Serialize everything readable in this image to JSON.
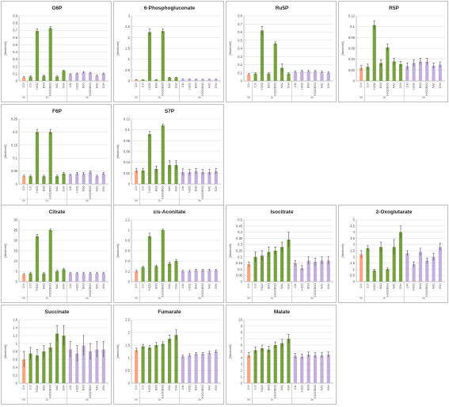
{
  "colors": {
    "control": "#f4a582",
    "group_1h": "#77a040",
    "group_4h": "#c2b0da",
    "error_bar": "#333333",
    "grid": "#d9d9d9"
  },
  "x_groups": [
    "0h",
    "1h",
    "4h"
  ],
  "chart_data": [
    {
      "type": "bar",
      "title": "G6P",
      "ylabel": "[fmol/cell]",
      "ylim": [
        0,
        0.9
      ],
      "yticks": [
        "0",
        "0.1",
        "0.2",
        "0.3",
        "0.4",
        "0.5",
        "0.6",
        "0.7",
        "0.8",
        "0.9"
      ],
      "categories": [
        "C0h",
        "C1h",
        "H2O2",
        "BSO",
        "H2O2/BSO",
        "NAC",
        "GSH",
        "C4h",
        "H2O2",
        "BSO",
        "H2O2/BSO",
        "NAC",
        "GSH"
      ],
      "values": [
        0.05,
        0.06,
        0.69,
        0.07,
        0.73,
        0.06,
        0.14,
        0.09,
        0.1,
        0.12,
        0.11,
        0.07,
        0.1
      ],
      "errors": [
        0.01,
        0.01,
        0.03,
        0.01,
        0.02,
        0.01,
        0.01,
        0.01,
        0.01,
        0.01,
        0.01,
        0.01,
        0.01
      ]
    },
    {
      "type": "bar",
      "title": "6-Phosphogluconate",
      "ylabel": "[fmol/cell]",
      "ylim": [
        0,
        3
      ],
      "yticks": [
        "0",
        "0.5",
        "1",
        "1.5",
        "2",
        "2.5",
        "3"
      ],
      "categories": [
        "C0h",
        "C1h",
        "H2O2",
        "BSO",
        "H2O2/BSO",
        "NAC",
        "GSH",
        "C4h",
        "H2O2",
        "BSO",
        "H2O2/BSO",
        "NAC",
        "GSH"
      ],
      "values": [
        0.05,
        0.05,
        2.25,
        0.06,
        2.3,
        0.15,
        0.15,
        0.08,
        0.08,
        0.07,
        0.07,
        0.07,
        0.07
      ],
      "errors": [
        0.01,
        0.01,
        0.15,
        0.01,
        0.1,
        0.02,
        0.02,
        0.01,
        0.01,
        0.01,
        0.01,
        0.01,
        0.01
      ]
    },
    {
      "type": "bar",
      "title": "Ru5P",
      "ylabel": "[fmol/cell]",
      "ylim": [
        0,
        0.8
      ],
      "yticks": [
        "0",
        "0.1",
        "0.2",
        "0.3",
        "0.4",
        "0.5",
        "0.6",
        "0.7",
        "0.8"
      ],
      "categories": [
        "C0h",
        "C1h",
        "H2O2",
        "BSO",
        "H2O2/BSO",
        "NAC",
        "GSH",
        "C4h",
        "H2O2",
        "BSO",
        "H2O2/BSO",
        "NAC",
        "GSH"
      ],
      "values": [
        0.08,
        0.09,
        0.62,
        0.09,
        0.46,
        0.16,
        0.09,
        0.11,
        0.12,
        0.12,
        0.12,
        0.11,
        0.1
      ],
      "errors": [
        0.01,
        0.01,
        0.05,
        0.01,
        0.02,
        0.05,
        0.01,
        0.01,
        0.01,
        0.01,
        0.01,
        0.01,
        0.01
      ]
    },
    {
      "type": "bar",
      "title": "R5P",
      "ylabel": "[fmol/cell]",
      "ylim": [
        0,
        0.12
      ],
      "yticks": [
        "0",
        "0.02",
        "0.04",
        "0.06",
        "0.08",
        "0.1",
        "0.12"
      ],
      "categories": [
        "C0h",
        "C1h",
        "H2O2",
        "BSO",
        "H2O2/BSO",
        "NAC",
        "GSH",
        "C4h",
        "H2O2",
        "BSO",
        "H2O2/BSO",
        "NAC",
        "GSH"
      ],
      "values": [
        0.024,
        0.026,
        0.103,
        0.033,
        0.062,
        0.036,
        0.031,
        0.027,
        0.033,
        0.036,
        0.036,
        0.028,
        0.03
      ],
      "errors": [
        0.005,
        0.005,
        0.008,
        0.006,
        0.006,
        0.006,
        0.005,
        0.006,
        0.006,
        0.006,
        0.006,
        0.005,
        0.005
      ]
    },
    {
      "type": "bar",
      "title": "F6P",
      "ylabel": "[fmol/cell]",
      "ylim": [
        0,
        0.25
      ],
      "yticks": [
        "0",
        "0.05",
        "0.1",
        "0.15",
        "0.2",
        "0.25"
      ],
      "categories": [
        "C0h",
        "C1h",
        "H2O2",
        "BSO",
        "H2O2/BSO",
        "NAC",
        "GSH",
        "C4h",
        "H2O2",
        "BSO",
        "H2O2/BSO",
        "NAC",
        "GSH"
      ],
      "values": [
        0.03,
        0.03,
        0.2,
        0.03,
        0.2,
        0.03,
        0.04,
        0.035,
        0.04,
        0.04,
        0.045,
        0.03,
        0.04
      ],
      "errors": [
        0.004,
        0.004,
        0.01,
        0.004,
        0.01,
        0.004,
        0.005,
        0.004,
        0.005,
        0.005,
        0.005,
        0.004,
        0.005
      ]
    },
    {
      "type": "bar",
      "title": "S7P",
      "ylabel": "[fmol/cell]",
      "ylim": [
        0,
        0.12
      ],
      "yticks": [
        "0",
        "0.02",
        "0.04",
        "0.06",
        "0.08",
        "0.1",
        "0.12"
      ],
      "categories": [
        "C0h",
        "C1h",
        "H2O2",
        "BSO",
        "H2O2/BSO",
        "NAC",
        "GSH",
        "C4h",
        "H2O2",
        "BSO",
        "H2O2/BSO",
        "NAC",
        "GSH"
      ],
      "values": [
        0.025,
        0.025,
        0.092,
        0.028,
        0.108,
        0.035,
        0.035,
        0.022,
        0.022,
        0.024,
        0.022,
        0.022,
        0.024
      ],
      "errors": [
        0.004,
        0.004,
        0.005,
        0.005,
        0.003,
        0.008,
        0.008,
        0.006,
        0.005,
        0.005,
        0.005,
        0.005,
        0.005
      ]
    },
    {
      "type": "bar",
      "title": "Citrate",
      "ylabel": "[fmol/cell]",
      "ylim": [
        0,
        30
      ],
      "yticks": [
        "0",
        "5",
        "10",
        "15",
        "20",
        "25",
        "30"
      ],
      "categories": [
        "C0h",
        "C1h",
        "H2O2",
        "BSO",
        "H2O2/BSO",
        "NAC",
        "GSH",
        "C4h",
        "H2O2",
        "BSO",
        "H2O2/BSO",
        "NAC",
        "GSH"
      ],
      "values": [
        3.5,
        4,
        22,
        4,
        25,
        5,
        6,
        4,
        4,
        4,
        4,
        4,
        4
      ],
      "errors": [
        0.4,
        0.4,
        1,
        0.4,
        0.5,
        0.5,
        0.5,
        0.4,
        0.4,
        0.4,
        0.4,
        0.4,
        0.4
      ]
    },
    {
      "type": "bar",
      "title": "cis-Aconitate",
      "ylabel": "[fmol/cell]",
      "ylim": [
        0,
        1.2
      ],
      "yticks": [
        "0",
        "0.2",
        "0.4",
        "0.6",
        "0.8",
        "1",
        "1.2"
      ],
      "categories": [
        "C0h",
        "C1h",
        "H2O2",
        "BSO",
        "H2O2/BSO",
        "NAC",
        "GSH",
        "C4h",
        "H2O2",
        "BSO",
        "H2O2/BSO",
        "NAC",
        "GSH"
      ],
      "values": [
        0.2,
        0.28,
        0.88,
        0.3,
        1.0,
        0.35,
        0.4,
        0.2,
        0.2,
        0.22,
        0.22,
        0.22,
        0.22
      ],
      "errors": [
        0.02,
        0.02,
        0.06,
        0.02,
        0.02,
        0.03,
        0.03,
        0.02,
        0.02,
        0.02,
        0.02,
        0.02,
        0.02
      ]
    },
    {
      "type": "bar",
      "title": "Isocitrate",
      "ylabel": "[fmol/cell]",
      "ylim": [
        0,
        0.5
      ],
      "yticks": [
        "0",
        "0.05",
        "0.1",
        "0.15",
        "0.2",
        "0.25",
        "0.3",
        "0.35",
        "0.4",
        "0.45",
        "0.5"
      ],
      "categories": [
        "C0h",
        "C1h",
        "H2O2",
        "BSO",
        "H2O2/BSO",
        "NAC",
        "GSH",
        "C4h",
        "H2O2",
        "BSO",
        "H2O2/BSO",
        "NAC",
        "GSH"
      ],
      "values": [
        0.14,
        0.2,
        0.21,
        0.24,
        0.25,
        0.28,
        0.34,
        0.15,
        0.11,
        0.17,
        0.16,
        0.17,
        0.17
      ],
      "errors": [
        0.02,
        0.04,
        0.04,
        0.04,
        0.03,
        0.04,
        0.06,
        0.02,
        0.02,
        0.03,
        0.03,
        0.03,
        0.03
      ]
    },
    {
      "type": "bar",
      "title": "2-Oxoglutarate",
      "ylabel": "[fmol/cell]",
      "ylim": [
        0,
        5
      ],
      "yticks": [
        "0",
        "0.5",
        "1",
        "1.5",
        "2",
        "2.5",
        "3",
        "3.5",
        "4",
        "4.5",
        "5"
      ],
      "categories": [
        "C0h",
        "C1h",
        "H2O2",
        "BSO",
        "H2O2/BSO",
        "NAC",
        "GSH",
        "C4h",
        "H2O2",
        "BSO",
        "H2O2/BSO",
        "NAC",
        "GSH"
      ],
      "values": [
        2.2,
        2.7,
        0.9,
        2.8,
        1.0,
        2.8,
        4.0,
        2.3,
        1.4,
        2.4,
        1.7,
        2.0,
        2.8
      ],
      "errors": [
        0.3,
        0.2,
        0.1,
        0.4,
        0.1,
        0.6,
        0.5,
        0.2,
        0.2,
        0.3,
        0.2,
        0.3,
        0.3
      ]
    },
    {
      "type": "bar",
      "title": "Succinate",
      "ylabel": "[fmol/cell]",
      "ylim": [
        0,
        1.6
      ],
      "yticks": [
        "0",
        "0.2",
        "0.4",
        "0.6",
        "0.8",
        "1",
        "1.2",
        "1.4",
        "1.6"
      ],
      "categories": [
        "C0h",
        "C1h",
        "H2O2",
        "BSO",
        "H2O2/BSO",
        "NAC",
        "GSH",
        "C4h",
        "H2O2",
        "BSO",
        "H2O2/BSO",
        "NAC",
        "GSH"
      ],
      "values": [
        0.6,
        0.75,
        0.7,
        0.8,
        0.9,
        1.25,
        1.2,
        0.85,
        0.75,
        0.95,
        0.8,
        0.85,
        0.85
      ],
      "errors": [
        0.2,
        0.15,
        0.15,
        0.15,
        0.1,
        0.2,
        0.25,
        0.2,
        0.2,
        0.25,
        0.2,
        0.2,
        0.2
      ]
    },
    {
      "type": "bar",
      "title": "Fumarate",
      "ylabel": "[fmol/cell]",
      "ylim": [
        0,
        2.5
      ],
      "yticks": [
        "0",
        "0.5",
        "1",
        "1.5",
        "2",
        "2.5"
      ],
      "categories": [
        "C0h",
        "C1h",
        "H2O2",
        "BSO",
        "H2O2/BSO",
        "NAC",
        "GSH",
        "C4h",
        "H2O2",
        "BSO",
        "H2O2/BSO",
        "NAC",
        "GSH"
      ],
      "values": [
        1.3,
        1.45,
        1.4,
        1.5,
        1.55,
        1.75,
        1.9,
        1.05,
        1.1,
        1.15,
        1.15,
        1.2,
        1.25
      ],
      "errors": [
        0.08,
        0.08,
        0.08,
        0.1,
        0.08,
        0.15,
        0.2,
        0.06,
        0.06,
        0.06,
        0.06,
        0.06,
        0.06
      ]
    },
    {
      "type": "bar",
      "title": "Malate",
      "ylabel": "[fmol/cell]",
      "ylim": [
        0,
        10
      ],
      "yticks": [
        "0",
        "1",
        "2",
        "3",
        "4",
        "5",
        "6",
        "7",
        "8",
        "9",
        "10"
      ],
      "categories": [
        "C0h",
        "C1h",
        "H2O2",
        "BSO",
        "H2O2/BSO",
        "NAC",
        "GSH",
        "C4h",
        "H2O2",
        "BSO",
        "H2O2/BSO",
        "NAC",
        "GSH"
      ],
      "values": [
        4.4,
        5.2,
        5.5,
        5.3,
        6.0,
        6.3,
        7.0,
        4.3,
        4.2,
        4.5,
        4.4,
        4.4,
        4.5
      ],
      "errors": [
        0.4,
        0.5,
        0.5,
        0.5,
        0.5,
        0.6,
        0.7,
        0.4,
        0.4,
        0.4,
        0.4,
        0.4,
        0.4
      ]
    }
  ]
}
